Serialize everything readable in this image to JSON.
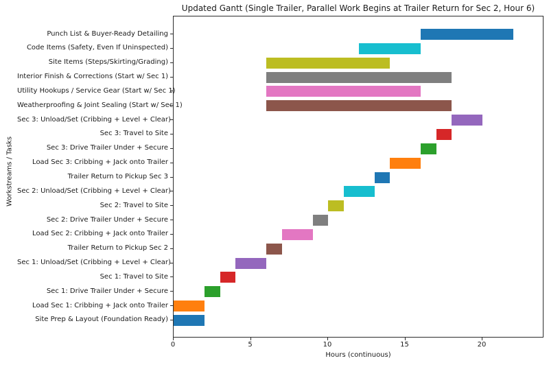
{
  "chart_data": {
    "type": "bar",
    "orientation": "horizontal",
    "title": "Updated Gantt (Single Trailer, Parallel Work Begins at Trailer Return for Sec 2, Hour 6)",
    "xlabel": "Hours (continuous)",
    "ylabel": "Workstreams / Tasks",
    "xlim": [
      0,
      24
    ],
    "xticks": [
      0,
      5,
      10,
      15,
      20
    ],
    "grid": false,
    "legend": null,
    "tasks": [
      {
        "label": "Punch List & Buyer-Ready Detailing",
        "start": 16,
        "end": 22,
        "color": "#1f77b4"
      },
      {
        "label": "Code Items (Safety, Even If Uninspected)",
        "start": 12,
        "end": 16,
        "color": "#17becf"
      },
      {
        "label": "Site Items (Steps/Skirting/Grading)",
        "start": 6,
        "end": 14,
        "color": "#bcbd22"
      },
      {
        "label": "Interior Finish & Corrections (Start w/ Sec 1)",
        "start": 6,
        "end": 18,
        "color": "#7f7f7f"
      },
      {
        "label": "Utility Hookups / Service Gear (Start w/ Sec 1)",
        "start": 6,
        "end": 16,
        "color": "#e377c2"
      },
      {
        "label": "Weatherproofing & Joint Sealing (Start w/ Sec 1)",
        "start": 6,
        "end": 18,
        "color": "#8c564b"
      },
      {
        "label": "Sec 3: Unload/Set (Cribbing + Level + Clear)",
        "start": 18,
        "end": 20,
        "color": "#9467bd"
      },
      {
        "label": "Sec 3: Travel to Site",
        "start": 17,
        "end": 18,
        "color": "#d62728"
      },
      {
        "label": "Sec 3: Drive Trailer Under + Secure",
        "start": 16,
        "end": 17,
        "color": "#2ca02c"
      },
      {
        "label": "Load Sec 3: Cribbing + Jack onto Trailer",
        "start": 14,
        "end": 16,
        "color": "#ff7f0e"
      },
      {
        "label": "Trailer Return to Pickup Sec 3",
        "start": 13,
        "end": 14,
        "color": "#1f77b4"
      },
      {
        "label": "Sec 2: Unload/Set (Cribbing + Level + Clear)",
        "start": 11,
        "end": 13,
        "color": "#17becf"
      },
      {
        "label": "Sec 2: Travel to Site",
        "start": 10,
        "end": 11,
        "color": "#bcbd22"
      },
      {
        "label": "Sec 2: Drive Trailer Under + Secure",
        "start": 9,
        "end": 10,
        "color": "#7f7f7f"
      },
      {
        "label": "Load Sec 2: Cribbing + Jack onto Trailer",
        "start": 7,
        "end": 9,
        "color": "#e377c2"
      },
      {
        "label": "Trailer Return to Pickup Sec 2",
        "start": 6,
        "end": 7,
        "color": "#8c564b"
      },
      {
        "label": "Sec 1: Unload/Set (Cribbing + Level + Clear)",
        "start": 4,
        "end": 6,
        "color": "#9467bd"
      },
      {
        "label": "Sec 1: Travel to Site",
        "start": 3,
        "end": 4,
        "color": "#d62728"
      },
      {
        "label": "Sec 1: Drive Trailer Under + Secure",
        "start": 2,
        "end": 3,
        "color": "#2ca02c"
      },
      {
        "label": "Load Sec 1: Cribbing + Jack onto Trailer",
        "start": 0,
        "end": 2,
        "color": "#ff7f0e"
      },
      {
        "label": "Site Prep & Layout (Foundation Ready)",
        "start": 0,
        "end": 2,
        "color": "#1f77b4"
      }
    ]
  }
}
